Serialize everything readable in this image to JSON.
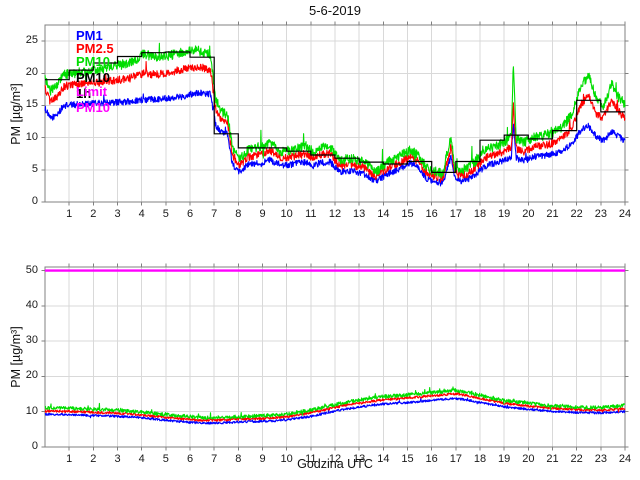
{
  "chart_data": [
    {
      "type": "line",
      "title": "5-6-2019",
      "ylabel": "PM [µg/m³]",
      "xlabel": "",
      "xlim": [
        0,
        24
      ],
      "ylim": [
        0,
        27.5
      ],
      "xticks": [
        1,
        2,
        3,
        4,
        5,
        6,
        7,
        8,
        9,
        10,
        11,
        12,
        13,
        14,
        15,
        16,
        17,
        18,
        19,
        20,
        21,
        22,
        23,
        24
      ],
      "yticks": [
        0,
        5,
        10,
        15,
        20,
        25
      ],
      "grid": true,
      "legend": {
        "position": "top-left-inside",
        "entries": [
          {
            "label": "PM1",
            "color": "#0000ff"
          },
          {
            "label": "PM2.5",
            "color": "#ff0000"
          },
          {
            "label": "PM10",
            "color": "#00dd00"
          },
          {
            "label": "PM10 1h",
            "color": "#000000"
          },
          {
            "label": "Limit PM10",
            "color": "#ff00ff"
          }
        ]
      },
      "series": [
        {
          "name": "PM1",
          "kind": "noisy",
          "color": "#0000ff",
          "noise": 0.5,
          "spike_prob": 0.012,
          "spike_amp": 1.3,
          "anchors": {
            "x": [
              0,
              0.2,
              0.45,
              0.8,
              1.5,
              2.5,
              3.5,
              4.1,
              4.6,
              5.2,
              5.7,
              6.3,
              6.85,
              7.05,
              7.3,
              7.55,
              7.75,
              8.0,
              8.4,
              8.9,
              9.3,
              9.8,
              10.3,
              10.8,
              11.1,
              11.4,
              11.8,
              12.2,
              12.7,
              13.2,
              13.7,
              14.2,
              14.7,
              15.1,
              15.45,
              15.8,
              16.1,
              16.45,
              16.8,
              16.95,
              17.2,
              17.5,
              17.8,
              18.3,
              18.8,
              19.1,
              19.3,
              19.38,
              19.5,
              19.8,
              20.2,
              20.6,
              21.0,
              21.4,
              21.8,
              22.2,
              22.5,
              22.8,
              23.1,
              23.45,
              23.7,
              24
            ],
            "y": [
              14.6,
              13.0,
              13.4,
              15.0,
              15.2,
              15.4,
              15.6,
              15.9,
              16.0,
              16.2,
              16.4,
              17.0,
              16.8,
              12.0,
              10.8,
              10.5,
              6.0,
              4.6,
              5.8,
              6.1,
              6.5,
              5.6,
              5.9,
              6.2,
              5.6,
              6.1,
              6.2,
              4.7,
              4.8,
              4.4,
              3.2,
              4.4,
              5.2,
              6.0,
              5.4,
              3.6,
              3.2,
              2.9,
              7.0,
              3.8,
              3.3,
              3.5,
              4.3,
              5.7,
              6.2,
              6.6,
              7.0,
              12.3,
              6.8,
              6.4,
              7.0,
              7.2,
              7.4,
              7.9,
              9.0,
              11.3,
              11.8,
              10.2,
              9.5,
              11.0,
              10.3,
              9.4
            ]
          }
        },
        {
          "name": "PM2.5",
          "kind": "noisy",
          "color": "#ff0000",
          "noise": 0.6,
          "spike_prob": 0.014,
          "spike_amp": 1.5,
          "anchors": {
            "x": [
              0,
              0.2,
              0.45,
              0.8,
              1.5,
              2.5,
              3.5,
              4.1,
              4.6,
              5.2,
              5.7,
              6.3,
              6.85,
              7.05,
              7.3,
              7.55,
              7.75,
              8.0,
              8.4,
              8.9,
              9.3,
              9.8,
              10.3,
              10.8,
              11.1,
              11.4,
              11.8,
              12.2,
              12.7,
              13.2,
              13.7,
              14.2,
              14.7,
              15.1,
              15.45,
              15.8,
              16.1,
              16.45,
              16.8,
              16.95,
              17.2,
              17.5,
              17.8,
              18.3,
              18.8,
              19.1,
              19.3,
              19.38,
              19.5,
              19.8,
              20.2,
              20.6,
              21.0,
              21.4,
              21.8,
              22.2,
              22.5,
              22.8,
              23.1,
              23.45,
              23.7,
              24
            ],
            "y": [
              17.6,
              15.8,
              16.2,
              18.0,
              18.3,
              18.7,
              19.2,
              20.0,
              19.8,
              20.2,
              20.6,
              21.0,
              20.6,
              14.5,
              12.8,
              12.4,
              7.4,
              5.6,
              7.0,
              7.4,
              8.0,
              6.8,
              7.1,
              7.5,
              6.8,
              7.4,
              7.5,
              5.6,
              5.8,
              5.3,
              4.0,
              5.3,
              6.2,
              7.0,
              6.3,
              4.4,
              4.0,
              3.6,
              8.6,
              4.6,
              4.1,
              4.4,
              5.3,
              7.0,
              7.6,
              8.1,
              8.6,
              15.2,
              8.3,
              7.8,
              8.5,
              8.8,
              9.1,
              9.9,
              11.6,
              15.3,
              16.4,
              13.8,
              13.0,
              15.8,
              14.2,
              13.0
            ]
          }
        },
        {
          "name": "PM10",
          "kind": "noisy",
          "color": "#00dd00",
          "noise": 0.75,
          "spike_prob": 0.025,
          "spike_amp": 2.4,
          "anchors": {
            "x": [
              0,
              0.2,
              0.45,
              0.8,
              1.5,
              2.5,
              3.5,
              4.1,
              4.6,
              5.2,
              5.7,
              6.3,
              6.85,
              7.05,
              7.3,
              7.55,
              7.75,
              8.0,
              8.4,
              8.9,
              9.3,
              9.8,
              10.3,
              10.8,
              11.1,
              11.4,
              11.8,
              12.2,
              12.7,
              13.2,
              13.7,
              14.2,
              14.7,
              15.1,
              15.45,
              15.8,
              16.1,
              16.45,
              16.8,
              16.95,
              17.2,
              17.5,
              17.8,
              18.3,
              18.8,
              19.1,
              19.3,
              19.38,
              19.5,
              19.8,
              20.2,
              20.6,
              21.0,
              21.4,
              21.8,
              22.2,
              22.5,
              22.8,
              23.1,
              23.45,
              23.7,
              24
            ],
            "y": [
              19.2,
              17.2,
              17.8,
              19.8,
              20.2,
              20.8,
              21.6,
              23.0,
              22.4,
              22.8,
              23.2,
              23.6,
              22.8,
              16.0,
              14.0,
              13.6,
              8.6,
              6.6,
              8.0,
              8.6,
              9.2,
              7.8,
              8.2,
              8.7,
              7.8,
              8.5,
              8.6,
              6.5,
              6.8,
              6.2,
              4.8,
              6.2,
              7.2,
              8.0,
              7.3,
              5.2,
              4.8,
              4.4,
              10.2,
              5.5,
              4.9,
              5.3,
              6.3,
              8.2,
              8.9,
              9.5,
              10.2,
              21.8,
              9.8,
              9.2,
              10.0,
              10.3,
              10.7,
              11.7,
              13.6,
              18.2,
              19.5,
              16.2,
              14.6,
              18.6,
              16.4,
              15.2
            ]
          }
        },
        {
          "name": "PM10 1h",
          "kind": "stairs",
          "color": "#000000",
          "values": [
            19,
            20.5,
            21.6,
            22.6,
            23.2,
            23.3,
            22.5,
            10.6,
            8.4,
            8.4,
            7.9,
            7.3,
            6.8,
            6.2,
            5.9,
            6.3,
            4.6,
            6.3,
            9.6,
            10.4,
            9.8,
            11.1,
            15.8,
            14.0
          ]
        },
        {
          "name": "Limit PM10",
          "kind": "hline",
          "color": "#ff00ff",
          "y": 50
        }
      ]
    },
    {
      "type": "line",
      "title": "",
      "ylabel": "PM [µg/m³]",
      "xlabel": "Godzina UTC",
      "xlim": [
        0,
        24
      ],
      "ylim": [
        0,
        51
      ],
      "xticks": [
        1,
        2,
        3,
        4,
        5,
        6,
        7,
        8,
        9,
        10,
        11,
        12,
        13,
        14,
        15,
        16,
        17,
        18,
        19,
        20,
        21,
        22,
        23,
        24
      ],
      "yticks": [
        0,
        10,
        20,
        30,
        40,
        50
      ],
      "grid": true,
      "series": [
        {
          "name": "PM1",
          "kind": "noisy",
          "color": "#0000ff",
          "noise": 0.32,
          "spike_prob": 0.01,
          "spike_amp": 0.8,
          "anchors": {
            "x": [
              0,
              1,
              2,
              3,
              4,
              5,
              5.5,
              6,
              6.5,
              7,
              7.5,
              8,
              8.5,
              9,
              9.5,
              10,
              10.5,
              11,
              11.5,
              12,
              12.5,
              13,
              13.5,
              14,
              14.5,
              15,
              15.5,
              16,
              16.5,
              16.9,
              17.2,
              17.6,
              18,
              18.5,
              19,
              19.5,
              20,
              20.5,
              21,
              21.5,
              22,
              22.5,
              23,
              23.5,
              24
            ],
            "y": [
              9.3,
              9.2,
              8.9,
              8.7,
              8.3,
              7.6,
              7.3,
              7.0,
              6.8,
              6.8,
              6.9,
              7.1,
              7.2,
              7.3,
              7.4,
              7.7,
              8.2,
              8.7,
              9.4,
              10.2,
              10.8,
              11.3,
              11.8,
              12.2,
              12.4,
              12.6,
              12.9,
              13.2,
              13.5,
              13.8,
              13.6,
              13.2,
              12.6,
              12.0,
              11.4,
              11.0,
              10.7,
              10.4,
              10.1,
              9.9,
              9.8,
              9.7,
              9.7,
              9.8,
              10.1
            ]
          }
        },
        {
          "name": "PM2.5",
          "kind": "noisy",
          "color": "#ff0000",
          "noise": 0.34,
          "spike_prob": 0.01,
          "spike_amp": 0.9,
          "anchors": {
            "x": [
              0,
              1,
              2,
              3,
              4,
              5,
              5.5,
              6,
              6.5,
              7,
              7.5,
              8,
              8.5,
              9,
              9.5,
              10,
              10.5,
              11,
              11.5,
              12,
              12.5,
              13,
              13.5,
              14,
              14.5,
              15,
              15.5,
              16,
              16.5,
              16.9,
              17.2,
              17.6,
              18,
              18.5,
              19,
              19.5,
              20,
              20.5,
              21,
              21.5,
              22,
              22.5,
              23,
              23.5,
              24
            ],
            "y": [
              10.2,
              10.1,
              9.8,
              9.6,
              9.1,
              8.4,
              8.1,
              7.8,
              7.6,
              7.6,
              7.7,
              7.9,
              8.0,
              8.1,
              8.3,
              8.6,
              9.1,
              9.7,
              10.4,
              11.2,
              11.9,
              12.4,
              12.9,
              13.4,
              13.6,
              13.9,
              14.2,
              14.5,
              14.8,
              15.1,
              14.9,
              14.4,
              13.8,
              13.1,
              12.4,
              12.0,
              11.6,
              11.3,
              11.0,
              10.8,
              10.6,
              10.5,
              10.5,
              10.6,
              10.9
            ]
          }
        },
        {
          "name": "PM10",
          "kind": "noisy",
          "color": "#00dd00",
          "noise": 0.5,
          "spike_prob": 0.03,
          "spike_amp": 1.3,
          "anchors": {
            "x": [
              0,
              1,
              2,
              3,
              4,
              5,
              5.5,
              6,
              6.5,
              7,
              7.5,
              8,
              8.5,
              9,
              9.5,
              10,
              10.5,
              11,
              11.5,
              12,
              12.5,
              13,
              13.5,
              14,
              14.5,
              15,
              15.5,
              16,
              16.5,
              16.9,
              17.2,
              17.6,
              18,
              18.5,
              19,
              19.5,
              20,
              20.5,
              21,
              21.5,
              22,
              22.5,
              23,
              23.5,
              24
            ],
            "y": [
              11.1,
              11.0,
              10.7,
              10.4,
              9.9,
              9.2,
              8.9,
              8.6,
              8.3,
              8.3,
              8.4,
              8.6,
              8.7,
              8.9,
              9.0,
              9.4,
              9.9,
              10.5,
              11.2,
              12.0,
              12.7,
              13.3,
              13.8,
              14.3,
              14.5,
              14.8,
              15.1,
              15.4,
              15.7,
              16.1,
              15.8,
              15.3,
              14.7,
              13.9,
              13.2,
              12.8,
              12.4,
              12.0,
              11.7,
              11.5,
              11.3,
              11.2,
              11.2,
              11.4,
              11.8
            ]
          }
        },
        {
          "name": "Limit PM10",
          "kind": "hline",
          "color": "#ff00ff",
          "y": 50
        }
      ]
    }
  ],
  "colors": {
    "grid": "#d9d9d9",
    "frame": "#808080",
    "tick_label": "#1a1a1a"
  }
}
